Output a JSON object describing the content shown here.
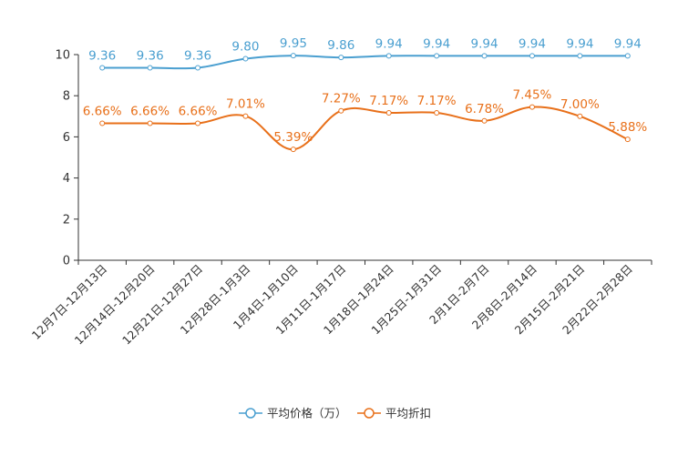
{
  "chart_data": {
    "type": "line",
    "title": "",
    "xlabel": "",
    "ylabel": "",
    "ylim": [
      0,
      10
    ],
    "yticks": [
      0,
      2,
      4,
      6,
      8,
      10
    ],
    "grid": false,
    "legend_position": "bottom-center",
    "categories": [
      "12月7日-12月13日",
      "12月14日-12月20日",
      "12月21日-12月27日",
      "12月28日-1月3日",
      "1月4日-1月10日",
      "1月11日-1月17日",
      "1月18日-1月24日",
      "1月25日-1月31日",
      "2月1日-2月7日",
      "2月8日-2月14日",
      "2月15日-2月21日",
      "2月22日-2月28日"
    ],
    "series": [
      {
        "name": "平均价格（万）",
        "color": "#4a9fd0",
        "values": [
          9.36,
          9.36,
          9.36,
          9.8,
          9.95,
          9.86,
          9.94,
          9.94,
          9.94,
          9.94,
          9.94,
          9.94
        ],
        "labels": [
          "9.36",
          "9.36",
          "9.36",
          "9.80",
          "9.95",
          "9.86",
          "9.94",
          "9.94",
          "9.94",
          "9.94",
          "9.94",
          "9.94"
        ]
      },
      {
        "name": "平均折扣",
        "color": "#e8701a",
        "values": [
          6.66,
          6.66,
          6.66,
          7.01,
          5.39,
          7.27,
          7.17,
          7.17,
          6.78,
          7.45,
          7.0,
          5.88
        ],
        "labels": [
          "6.66%",
          "6.66%",
          "6.66%",
          "7.01%",
          "5.39%",
          "7.27%",
          "7.17%",
          "7.17%",
          "6.78%",
          "7.45%",
          "7.00%",
          "5.88%"
        ]
      }
    ]
  }
}
